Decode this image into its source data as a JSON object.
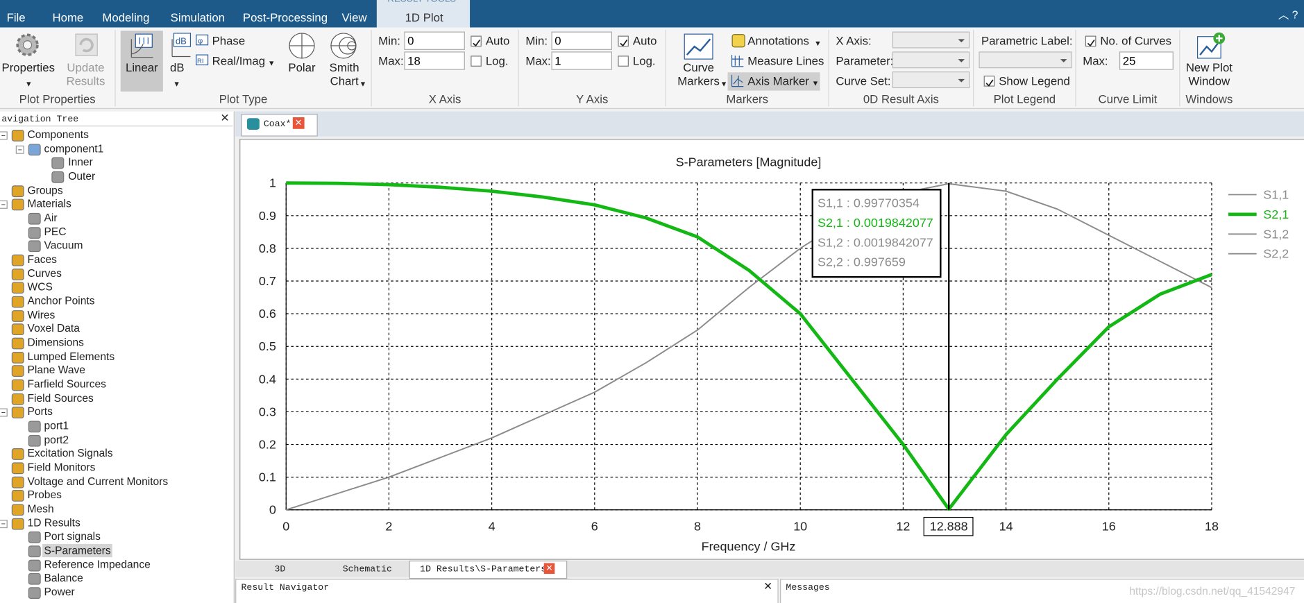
{
  "tabs": {
    "context": "RESULT TOOLS",
    "items": [
      "File",
      "Home",
      "Modeling",
      "Simulation",
      "Post-Processing",
      "View"
    ],
    "active": "1D Plot"
  },
  "ribbon": {
    "plot_properties": {
      "label": "Plot Properties",
      "properties": "Properties",
      "update": "Update Results"
    },
    "plot_type": {
      "label": "Plot Type",
      "linear": "Linear",
      "db": "dB",
      "phase": "Phase",
      "real_imag": "Real/Imag",
      "polar": "Polar",
      "smith": "Smith Chart"
    },
    "x_axis": {
      "label": "X Axis",
      "min_label": "Min:",
      "min": "0",
      "max_label": "Max:",
      "max": "18",
      "auto_label": "Auto",
      "auto": true,
      "log_label": "Log.",
      "log": false
    },
    "y_axis": {
      "label": "Y Axis",
      "min_label": "Min:",
      "min": "0",
      "max_label": "Max:",
      "max": "1",
      "auto_label": "Auto",
      "auto": true,
      "log_label": "Log.",
      "log": false
    },
    "markers": {
      "label": "Markers",
      "curve": "Curve Markers",
      "annotations": "Annotations",
      "measure": "Measure Lines",
      "axis": "Axis Marker"
    },
    "result_axis": {
      "label": "0D Result Axis",
      "x_axis": "X Axis:",
      "parameter": "Parameter:",
      "curve_set": "Curve Set:"
    },
    "plot_legend": {
      "label": "Plot Legend",
      "parametric": "Parametric Label:",
      "show_legend_label": "Show Legend",
      "show_legend": true
    },
    "curve_limit": {
      "label": "Curve Limit",
      "no_curves_label": "No. of Curves",
      "no_curves": true,
      "max_label": "Max:",
      "max": "25"
    },
    "windows": {
      "label": "Windows",
      "new_plot": "New Plot Window"
    }
  },
  "navigation": {
    "title": "avigation Tree",
    "tree": [
      {
        "label": "Components",
        "children": [
          {
            "label": "component1",
            "children": [
              {
                "label": "Inner"
              },
              {
                "label": "Outer"
              }
            ]
          }
        ]
      },
      {
        "label": "Groups"
      },
      {
        "label": "Materials",
        "children": [
          {
            "label": "Air"
          },
          {
            "label": "PEC"
          },
          {
            "label": "Vacuum"
          }
        ]
      },
      {
        "label": "Faces"
      },
      {
        "label": "Curves"
      },
      {
        "label": "WCS"
      },
      {
        "label": "Anchor Points"
      },
      {
        "label": "Wires"
      },
      {
        "label": "Voxel Data"
      },
      {
        "label": "Dimensions"
      },
      {
        "label": "Lumped Elements"
      },
      {
        "label": "Plane Wave"
      },
      {
        "label": "Farfield Sources"
      },
      {
        "label": "Field Sources"
      },
      {
        "label": "Ports",
        "children": [
          {
            "label": "port1"
          },
          {
            "label": "port2"
          }
        ]
      },
      {
        "label": "Excitation Signals"
      },
      {
        "label": "Field Monitors"
      },
      {
        "label": "Voltage and Current Monitors"
      },
      {
        "label": "Probes"
      },
      {
        "label": "Mesh"
      },
      {
        "label": "1D Results",
        "children": [
          {
            "label": "Port signals"
          },
          {
            "label": "S-Parameters",
            "selected": true
          },
          {
            "label": "Reference Impedance"
          },
          {
            "label": "Balance"
          },
          {
            "label": "Power"
          }
        ]
      }
    ]
  },
  "document_tab": "Coax*",
  "chart_data": {
    "type": "line",
    "title": "S-Parameters [Magnitude]",
    "xlabel": "Frequency / GHz",
    "x": [
      0,
      1,
      2,
      3,
      4,
      5,
      6,
      7,
      8,
      9,
      10,
      11,
      12,
      12.888,
      14,
      15,
      16,
      17,
      18
    ],
    "series": [
      {
        "name": "S1,1",
        "color": "#8c8c8c",
        "line_width": 1.5,
        "values": [
          0,
          0.05,
          0.1,
          0.16,
          0.22,
          0.29,
          0.36,
          0.45,
          0.55,
          0.68,
          0.8,
          0.9,
          0.97,
          0.99770354,
          0.975,
          0.92,
          0.84,
          0.76,
          0.68
        ]
      },
      {
        "name": "S2,1",
        "color": "#14b814",
        "line_width": 4,
        "values": [
          1,
          0.999,
          0.995,
          0.987,
          0.975,
          0.957,
          0.933,
          0.893,
          0.835,
          0.733,
          0.6,
          0.4,
          0.2,
          0.0019842077,
          0.23,
          0.4,
          0.56,
          0.66,
          0.72
        ]
      },
      {
        "name": "S1,2",
        "color": "#8c8c8c",
        "line_width": 1.5,
        "values": [
          1,
          0.999,
          0.995,
          0.987,
          0.975,
          0.957,
          0.933,
          0.893,
          0.835,
          0.733,
          0.6,
          0.4,
          0.2,
          0.0019842077,
          0.23,
          0.4,
          0.56,
          0.66,
          0.72
        ]
      },
      {
        "name": "S2,2",
        "color": "#8c8c8c",
        "line_width": 1.5,
        "values": [
          0,
          0.05,
          0.1,
          0.16,
          0.22,
          0.29,
          0.36,
          0.45,
          0.55,
          0.68,
          0.8,
          0.9,
          0.97,
          0.997659,
          0.975,
          0.92,
          0.84,
          0.76,
          0.68
        ]
      }
    ],
    "xlim": [
      0,
      18
    ],
    "ylim": [
      0,
      1
    ],
    "xticks": [
      0,
      2,
      4,
      6,
      8,
      10,
      12,
      14,
      16,
      18
    ],
    "yticks": [
      0,
      0.1,
      0.2,
      0.3,
      0.4,
      0.5,
      0.6,
      0.7,
      0.8,
      0.9,
      1
    ],
    "grid": true,
    "legend": "right",
    "marker": {
      "x": 12.888,
      "readouts": [
        "S1,1 : 0.99770354",
        "S2,1 : 0.0019842077",
        "S1,2 : 0.0019842077",
        "S2,2 : 0.997659"
      ]
    }
  },
  "bottom_tabs": [
    "3D",
    "Schematic",
    "1D Results\\S-Parameters"
  ],
  "panels": {
    "result_navigator": "Result Navigator",
    "messages": "Messages"
  },
  "watermark": "https://blog.csdn.net/qq_41542947"
}
